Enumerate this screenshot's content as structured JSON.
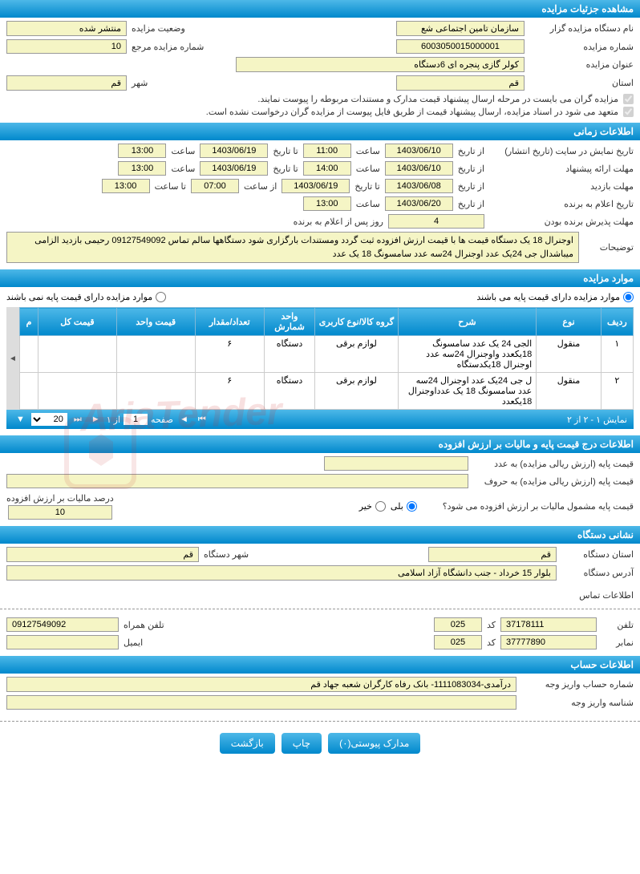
{
  "headers": {
    "details": "مشاهده جزئیات مزایده",
    "time_info": "اطلاعات زمانی",
    "auction_items": "موارد مزایده",
    "price_info": "اطلاعات درج قیمت پایه و مالیات بر ارزش افزوده",
    "org_address": "نشانی دستگاه",
    "contact_info": "اطلاعات تماس",
    "account_info": "اطلاعات حساب"
  },
  "details": {
    "org_label": "نام دستگاه مزایده گزار",
    "org_value": "سازمان تامین اجتماعی شع",
    "status_label": "وضعیت مزایده",
    "status_value": "منتشر شده",
    "number_label": "شماره مزایده",
    "number_value": "6003050015000001",
    "ref_label": "شماره مزایده مرجع",
    "ref_value": "10",
    "title_label": "عنوان مزایده",
    "title_value": "کولر گازی پنجره ای 6دستگاه",
    "province_label": "استان",
    "province_value": "قم",
    "city_label": "شهر",
    "city_value": "قم",
    "note1": "مزایده گران می بایست در مرحله ارسال پیشنهاد قیمت مدارک و مستندات مربوطه را پیوست نمایند.",
    "note2": "متعهد می شود در اسناد مزایده، ارسال پیشنهاد قیمت از طریق فایل پیوست از مزایده گران درخواست نشده است."
  },
  "time": {
    "display_label": "تاریخ نمایش در سایت (تاریخ انتشار)",
    "from_date_label": "از تاریخ",
    "to_date_label": "تا تاریخ",
    "time_label": "ساعت",
    "to_time_label": "تا ساعت",
    "from_time_label": "از ساعت",
    "display_from_date": "1403/06/10",
    "display_from_time": "11:00",
    "display_to_date": "1403/06/19",
    "display_to_time": "13:00",
    "proposal_label": "مهلت ارائه پیشنهاد",
    "proposal_from_date": "1403/06/10",
    "proposal_from_time": "14:00",
    "proposal_to_date": "1403/06/19",
    "proposal_to_time": "13:00",
    "visit_label": "مهلت بازدید",
    "visit_from_date": "1403/06/08",
    "visit_to_date": "1403/06/19",
    "visit_from_time": "07:00",
    "visit_to_time": "13:00",
    "announce_label": "تاریخ اعلام به برنده",
    "announce_date": "1403/06/20",
    "announce_time": "13:00",
    "accept_label": "مهلت پذیرش برنده بودن",
    "accept_days": "4",
    "accept_unit": "روز پس از اعلام به برنده",
    "desc_label": "توضیحات",
    "desc_value": "اوجنرال 18 یک دستگاه قیمت ها با قیمت ارزش افزوده ثبت گردد ومستندات بارگزاری شود دستگاهها سالم تماس 09127549092 رحیمی بازدید الزامی میباشدال جی 24یک عدد اوجنرال 24سه عدد سامسونگ 18 یک عدد"
  },
  "items": {
    "radio_has_base": "موارد مزایده دارای قیمت پایه می باشند",
    "radio_no_base": "موارد مزایده دارای قیمت پایه نمی باشند",
    "columns": [
      "ردیف",
      "نوع",
      "شرح",
      "گروه کالا/نوع کاربری",
      "واحد شمارش",
      "تعداد/مقدار",
      "قیمت واحد",
      "قیمت کل",
      "م"
    ],
    "rows": [
      {
        "idx": "۱",
        "type": "منقول",
        "desc": "الجی 24 یک عدد سامسونگ 18یکعدد واوجنرال 24سه عدد اوجنرال 18یکدستگاه",
        "group": "لوازم برقی",
        "unit": "دستگاه",
        "qty": "۶",
        "unit_price": "",
        "total": ""
      },
      {
        "idx": "۲",
        "type": "منقول",
        "desc": "ل جی 24یک عدد اوجنرال 24سه عدد سامسونگ 18 یک عدداوجنرال 18یکعدد",
        "group": "لوازم برقی",
        "unit": "دستگاه",
        "qty": "۶",
        "unit_price": "",
        "total": ""
      }
    ],
    "pager_info": "نمایش ۱ - ۲ از ۲",
    "page_label": "صفحه",
    "page_num": "1",
    "page_of": "از ۱",
    "page_size": "20"
  },
  "price": {
    "base_num_label": "قیمت پایه (ارزش ریالی مزایده) به عدد",
    "base_num_value": "",
    "base_text_label": "قیمت پایه (ارزش ریالی مزایده) به حروف",
    "base_text_value": "",
    "vat_q_label": "قیمت پایه مشمول مالیات بر ارزش افزوده می شود؟",
    "yes": "بلی",
    "no": "خیر",
    "vat_pct_label": "درصد مالیات بر ارزش افزوده",
    "vat_pct_value": "10"
  },
  "address": {
    "province_label": "استان دستگاه",
    "province_value": "قم",
    "city_label": "شهر دستگاه",
    "city_value": "قم",
    "addr_label": "آدرس دستگاه",
    "addr_value": "بلوار 15 خرداد - جنب دانشگاه آزاد اسلامی"
  },
  "contact": {
    "phone_label": "تلفن",
    "phone_value": "37178111",
    "code_label": "کد",
    "code_value": "025",
    "mobile_label": "تلفن همراه",
    "mobile_value": "09127549092",
    "fax_label": "نمابر",
    "fax_value": "37777890",
    "fax_code": "025",
    "email_label": "ایمیل",
    "email_value": ""
  },
  "account": {
    "acc_label": "شماره حساب واریز وجه",
    "acc_value": "درآمدی-1111083034- بانک رفاه کارگران شعبه جهاد قم",
    "id_label": "شناسه واریز وجه",
    "id_value": ""
  },
  "buttons": {
    "attachments": "مدارک پیوستی(۰)",
    "print": "چاپ",
    "back": "بازگشت"
  },
  "watermark": "AriaTender"
}
